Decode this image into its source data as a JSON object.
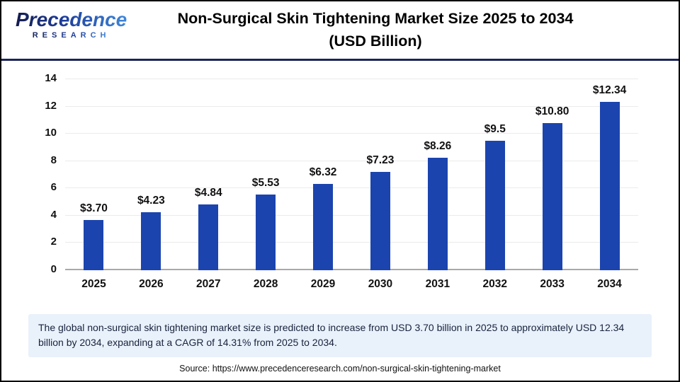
{
  "header": {
    "logo_line1": "Precedence",
    "logo_line2": "RESEARCH",
    "title_line1": "Non-Surgical Skin Tightening Market Size 2025 to 2034",
    "title_line2": "(USD Billion)"
  },
  "chart_data": {
    "type": "bar",
    "title": "Non-Surgical Skin Tightening Market Size 2025 to 2034 (USD Billion)",
    "categories": [
      "2025",
      "2026",
      "2027",
      "2028",
      "2029",
      "2030",
      "2031",
      "2032",
      "2033",
      "2034"
    ],
    "values": [
      3.7,
      4.23,
      4.84,
      5.53,
      6.32,
      7.23,
      8.26,
      9.5,
      10.8,
      12.34
    ],
    "value_labels": [
      "$3.70",
      "$4.23",
      "$4.84",
      "$5.53",
      "$6.32",
      "$7.23",
      "$8.26",
      "$9.5",
      "$10.80",
      "$12.34"
    ],
    "xlabel": "",
    "ylabel": "",
    "ylim": [
      0,
      14
    ],
    "yticks": [
      0,
      2,
      4,
      6,
      8,
      10,
      12,
      14
    ],
    "grid": true,
    "legend": "none",
    "bar_color": "#1b44ae"
  },
  "callout": {
    "text": "The global non-surgical skin tightening market size is predicted to increase from USD 3.70 billion in 2025 to approximately USD 12.34 billion by 2034, expanding at a CAGR of 14.31% from 2025 to 2034."
  },
  "source": {
    "text": "Source: https://www.precedenceresearch.com/non-surgical-skin-tightening-market"
  },
  "colors": {
    "bar": "#1b44ae",
    "header_divider": "#1b2558",
    "callout_bg": "#e9f1fb",
    "gridline": "#ebebeb",
    "axis_line": "#a9a9a9",
    "logo_navy": "#141c4e",
    "logo_blue": "#3f88d8"
  }
}
